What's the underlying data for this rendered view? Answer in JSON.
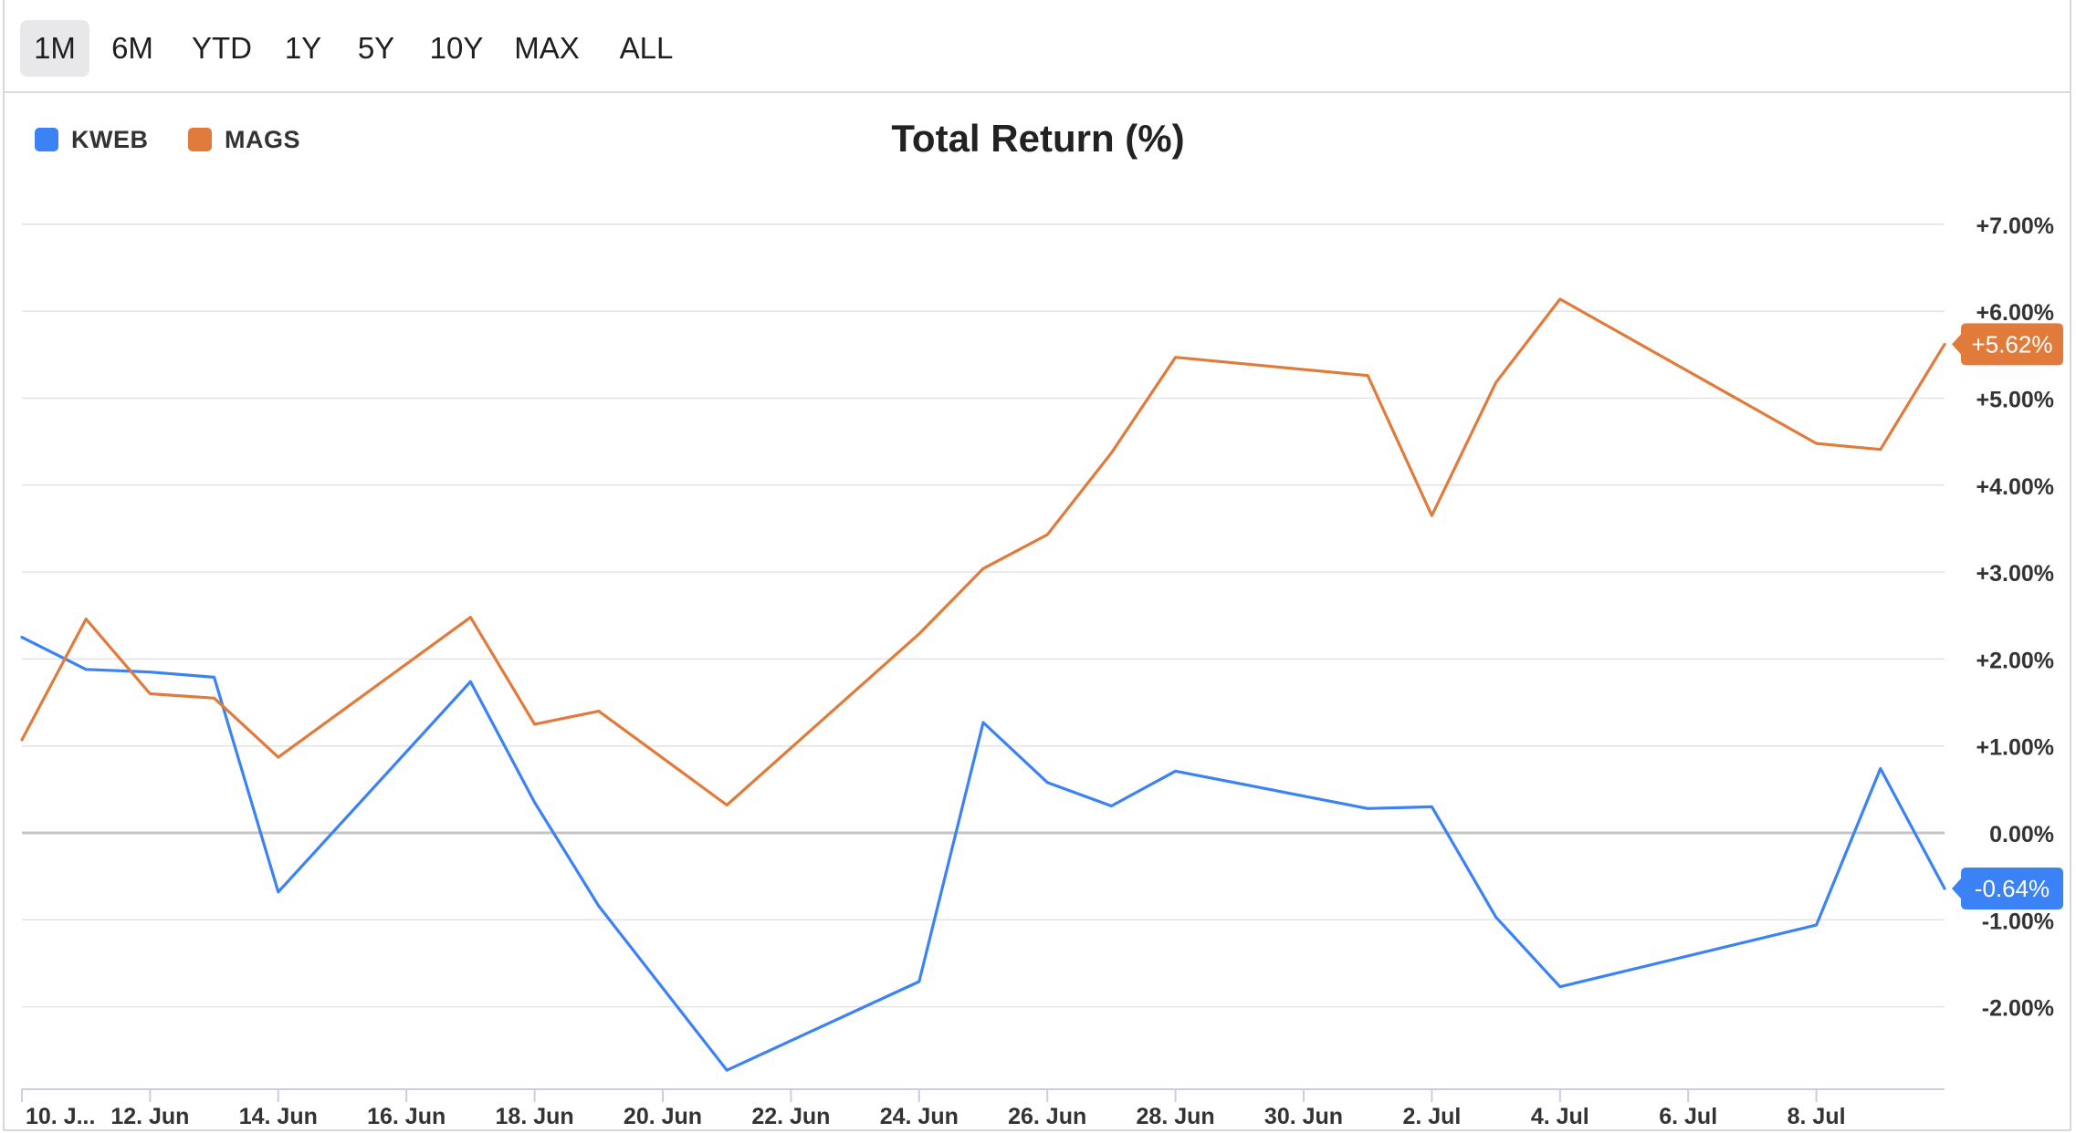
{
  "toolbar": {
    "ranges": [
      "1M",
      "6M",
      "YTD",
      "1Y",
      "5Y",
      "10Y",
      "MAX",
      "ALL"
    ],
    "active": "1M"
  },
  "legend": [
    {
      "name": "KWEB",
      "color": "#3b82f6"
    },
    {
      "name": "MAGS",
      "color": "#e07b3c"
    }
  ],
  "chart_data": {
    "type": "line",
    "title": "Total Return (%)",
    "ylim": [
      -2.9,
      7.0
    ],
    "y_ticks": [
      7,
      6,
      5,
      4,
      3,
      2,
      1,
      0,
      -1,
      -2
    ],
    "y_tick_labels": [
      "+7.00%",
      "+6.00%",
      "+5.00%",
      "+4.00%",
      "+3.00%",
      "+2.00%",
      "+1.00%",
      "0.00%",
      "-1.00%",
      "-2.00%"
    ],
    "x_ticks": [
      "2024-06-10",
      "2024-06-12",
      "2024-06-14",
      "2024-06-16",
      "2024-06-18",
      "2024-06-20",
      "2024-06-22",
      "2024-06-24",
      "2024-06-26",
      "2024-06-28",
      "2024-06-30",
      "2024-07-02",
      "2024-07-04",
      "2024-07-06",
      "2024-07-08"
    ],
    "x_tick_labels": [
      "10. J...",
      "12. Jun",
      "14. Jun",
      "16. Jun",
      "18. Jun",
      "20. Jun",
      "22. Jun",
      "24. Jun",
      "26. Jun",
      "28. Jun",
      "30. Jun",
      "2. Jul",
      "4. Jul",
      "6. Jul",
      "8. Jul"
    ],
    "xlim": [
      "2024-06-10",
      "2024-07-10"
    ],
    "grid": true,
    "legend_position": "top-left",
    "series": [
      {
        "name": "KWEB",
        "color": "#3b82f6",
        "last_label": "-0.64%",
        "points": [
          [
            "2024-06-10",
            2.25
          ],
          [
            "2024-06-11",
            1.88
          ],
          [
            "2024-06-12",
            1.85
          ],
          [
            "2024-06-13",
            1.79
          ],
          [
            "2024-06-14",
            -0.68
          ],
          [
            "2024-06-17",
            1.74
          ],
          [
            "2024-06-18",
            0.35
          ],
          [
            "2024-06-19",
            -0.84
          ],
          [
            "2024-06-21",
            -2.73
          ],
          [
            "2024-06-24",
            -1.71
          ],
          [
            "2024-06-25",
            1.27
          ],
          [
            "2024-06-26",
            0.58
          ],
          [
            "2024-06-27",
            0.31
          ],
          [
            "2024-06-28",
            0.71
          ],
          [
            "2024-07-01",
            0.28
          ],
          [
            "2024-07-02",
            0.3
          ],
          [
            "2024-07-03",
            -0.97
          ],
          [
            "2024-07-04",
            -1.77
          ],
          [
            "2024-07-08",
            -1.06
          ],
          [
            "2024-07-09",
            0.74
          ],
          [
            "2024-07-10",
            -0.64
          ]
        ]
      },
      {
        "name": "MAGS",
        "color": "#e07b3c",
        "last_label": "+5.62%",
        "points": [
          [
            "2024-06-10",
            1.07
          ],
          [
            "2024-06-11",
            2.46
          ],
          [
            "2024-06-12",
            1.6
          ],
          [
            "2024-06-13",
            1.55
          ],
          [
            "2024-06-14",
            0.87
          ],
          [
            "2024-06-17",
            2.48
          ],
          [
            "2024-06-18",
            1.25
          ],
          [
            "2024-06-19",
            1.4
          ],
          [
            "2024-06-21",
            0.32
          ],
          [
            "2024-06-24",
            2.29
          ],
          [
            "2024-06-25",
            3.04
          ],
          [
            "2024-06-26",
            3.43
          ],
          [
            "2024-06-27",
            4.37
          ],
          [
            "2024-06-28",
            5.47
          ],
          [
            "2024-07-01",
            5.26
          ],
          [
            "2024-07-02",
            3.65
          ],
          [
            "2024-07-03",
            5.18
          ],
          [
            "2024-07-04",
            6.14
          ],
          [
            "2024-07-08",
            4.48
          ],
          [
            "2024-07-09",
            4.41
          ],
          [
            "2024-07-10",
            5.62
          ]
        ]
      }
    ]
  }
}
